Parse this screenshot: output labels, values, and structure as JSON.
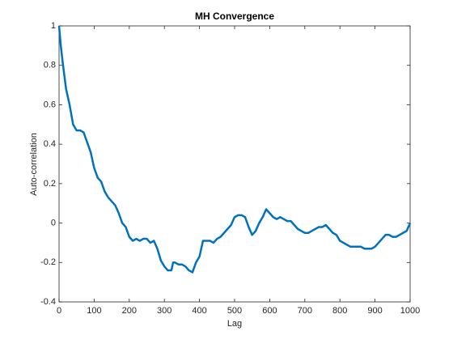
{
  "chart_data": {
    "type": "line",
    "title": "MH Convergence",
    "x_label": "Lag",
    "y_label": "Auto-correlation",
    "x": [
      0,
      5,
      10,
      20,
      30,
      40,
      50,
      60,
      70,
      80,
      90,
      100,
      110,
      120,
      130,
      140,
      150,
      160,
      170,
      180,
      190,
      200,
      210,
      220,
      230,
      240,
      250,
      260,
      270,
      280,
      290,
      300,
      310,
      320,
      325,
      330,
      340,
      350,
      360,
      370,
      380,
      390,
      400,
      410,
      420,
      430,
      440,
      450,
      460,
      470,
      480,
      490,
      500,
      510,
      520,
      530,
      540,
      550,
      560,
      570,
      580,
      590,
      600,
      610,
      620,
      630,
      640,
      650,
      660,
      670,
      680,
      690,
      700,
      710,
      720,
      730,
      740,
      750,
      760,
      770,
      780,
      790,
      800,
      810,
      820,
      830,
      840,
      850,
      860,
      870,
      880,
      890,
      900,
      910,
      920,
      930,
      940,
      950,
      960,
      970,
      980,
      990,
      1000
    ],
    "series": [
      {
        "name": "Auto-correlation",
        "color": "#0072bd",
        "values": [
          1.0,
          0.9,
          0.82,
          0.68,
          0.6,
          0.5,
          0.47,
          0.47,
          0.46,
          0.41,
          0.36,
          0.28,
          0.23,
          0.21,
          0.16,
          0.13,
          0.11,
          0.09,
          0.05,
          0.0,
          -0.02,
          -0.07,
          -0.09,
          -0.08,
          -0.09,
          -0.08,
          -0.08,
          -0.1,
          -0.09,
          -0.13,
          -0.19,
          -0.22,
          -0.24,
          -0.24,
          -0.2,
          -0.2,
          -0.21,
          -0.21,
          -0.22,
          -0.24,
          -0.25,
          -0.2,
          -0.17,
          -0.09,
          -0.09,
          -0.09,
          -0.1,
          -0.08,
          -0.07,
          -0.05,
          -0.03,
          -0.01,
          0.03,
          0.04,
          0.04,
          0.03,
          -0.02,
          -0.06,
          -0.04,
          0.0,
          0.03,
          0.07,
          0.05,
          0.03,
          0.02,
          0.03,
          0.02,
          0.01,
          0.01,
          -0.01,
          -0.03,
          -0.04,
          -0.05,
          -0.05,
          -0.04,
          -0.03,
          -0.02,
          -0.02,
          -0.01,
          -0.03,
          -0.05,
          -0.06,
          -0.09,
          -0.1,
          -0.11,
          -0.12,
          -0.12,
          -0.12,
          -0.12,
          -0.13,
          -0.13,
          -0.13,
          -0.12,
          -0.1,
          -0.08,
          -0.06,
          -0.06,
          -0.07,
          -0.07,
          -0.06,
          -0.05,
          -0.04,
          0.0
        ]
      }
    ],
    "xlim": [
      0,
      1000
    ],
    "xticks": [
      0,
      100,
      200,
      300,
      400,
      500,
      600,
      700,
      800,
      900,
      1000
    ],
    "ylim": [
      -0.4,
      1
    ],
    "yticks": [
      -0.4,
      -0.2,
      0,
      0.2,
      0.4,
      0.6,
      0.8,
      1
    ]
  }
}
